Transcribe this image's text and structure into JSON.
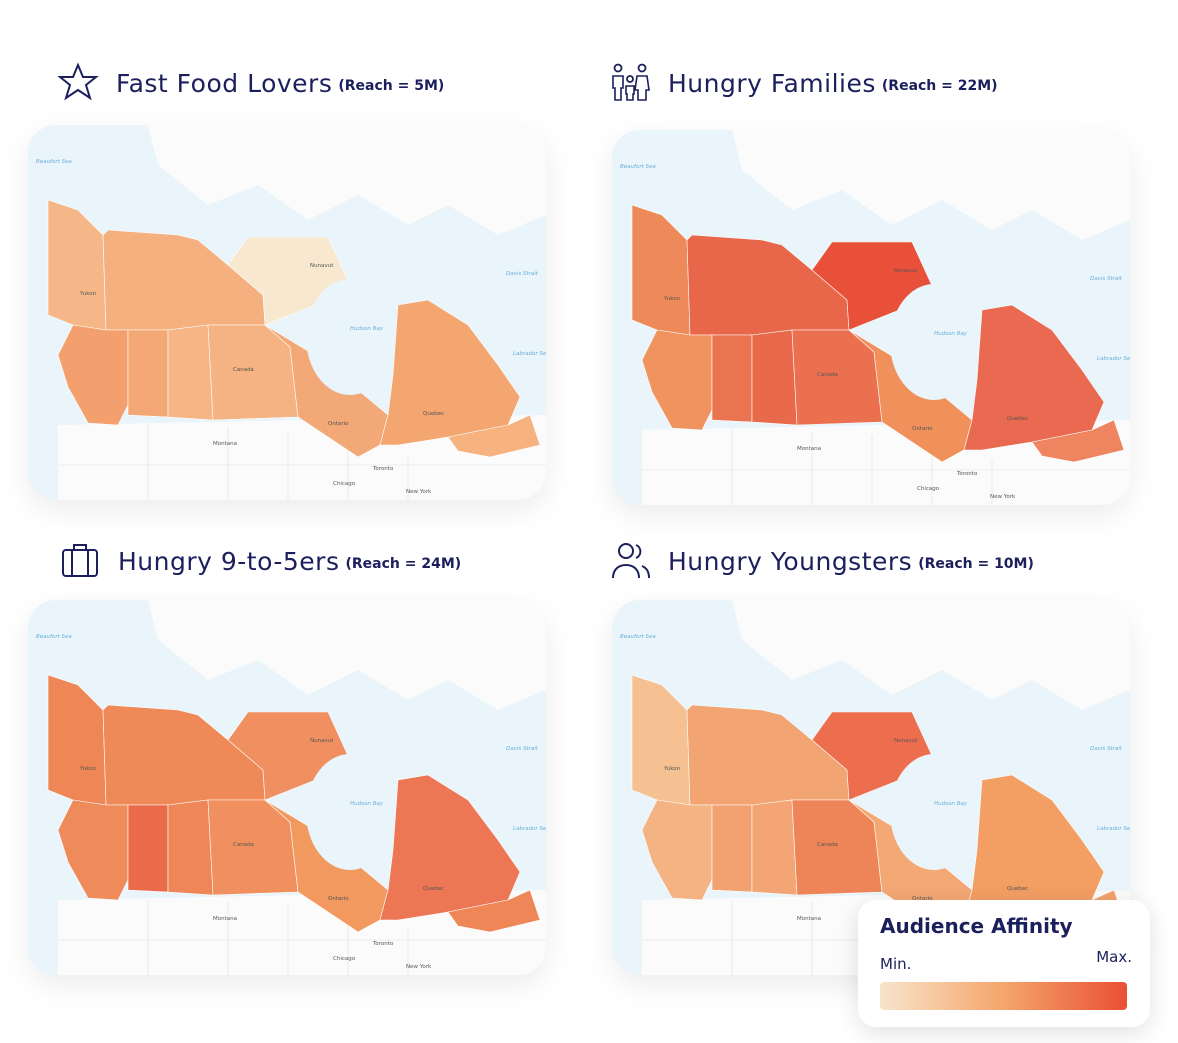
{
  "panels": [
    {
      "title": "Fast Food Lovers",
      "reach": "(Reach = 5M)",
      "region_colors": [
        "#f5b787",
        "#f4b07f",
        "#f7e8cf",
        "#f3a06e",
        "#f4a875",
        "#f5b585",
        "#f5b282",
        "#f3a878",
        "#f3a670",
        "#f6b27f"
      ]
    },
    {
      "title": "Hungry Families",
      "reach": "(Reach = 22M)",
      "region_colors": [
        "#ee8a5a",
        "#e8674a",
        "#e8503a",
        "#f0935f",
        "#e9744f",
        "#e96a4b",
        "#ea7050",
        "#f0915c",
        "#e96a50",
        "#ee8560"
      ]
    },
    {
      "title": "Hungry 9-to-5ers",
      "reach": "(Reach = 24M)",
      "region_colors": [
        "#ef8656",
        "#ef8a58",
        "#f09060",
        "#ef8a5a",
        "#e96b4a",
        "#ee8658",
        "#f0905e",
        "#f1995f",
        "#ed7755",
        "#ef8657"
      ]
    },
    {
      "title": "Hungry Youngsters",
      "reach": "(Reach = 10M)",
      "region_colors": [
        "#f6c192",
        "#f2a472",
        "#ec6e4e",
        "#f4b382",
        "#f2a270",
        "#f3a575",
        "#ee8558",
        "#f4a874",
        "#f39e63",
        "#f3a26c"
      ]
    }
  ],
  "map_labels": [
    "Beaufort Sea",
    "Yukon",
    "Nunavut",
    "Hudson Bay",
    "Canada",
    "Ontario",
    "Quebec",
    "Montana",
    "Chicago",
    "Toronto",
    "New York",
    "Labrador Sea",
    "Davis Strait"
  ],
  "legend": {
    "title": "Audience Affinity",
    "min": "Min.",
    "max": "Max.",
    "colors": [
      "#f8e4ca",
      "#f4a66c",
      "#ea4f33"
    ]
  }
}
